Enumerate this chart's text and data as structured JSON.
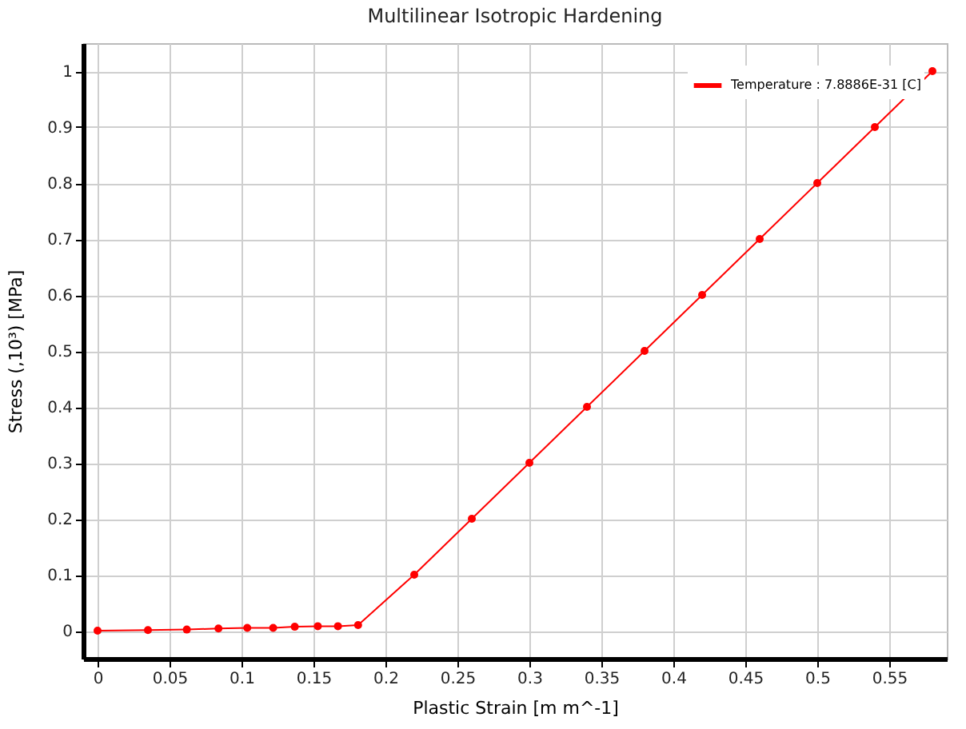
{
  "chart_data": {
    "type": "line",
    "title": "Multilinear Isotropic Hardening",
    "xlabel": "Plastic Strain  [m m^-1]",
    "ylabel": "Stress  (,10³)  [MPa]",
    "x": [
      0,
      0.035,
      0.062,
      0.084,
      0.104,
      0.122,
      0.137,
      0.153,
      0.167,
      0.181,
      0.22,
      0.26,
      0.3,
      0.34,
      0.38,
      0.42,
      0.46,
      0.5,
      0.54,
      0.58
    ],
    "series": [
      {
        "name": "Temperature : 7.8886E-31 [C]",
        "color": "#ff0000",
        "values": [
          0,
          0.001,
          0.002,
          0.004,
          0.005,
          0.005,
          0.007,
          0.008,
          0.008,
          0.01,
          0.1,
          0.2,
          0.3,
          0.4,
          0.5,
          0.6,
          0.7,
          0.8,
          0.9,
          1.0
        ]
      }
    ],
    "xlim": [
      -0.01,
      0.59
    ],
    "xticks": [
      0,
      0.05,
      0.1,
      0.15,
      0.2,
      0.25,
      0.3,
      0.35,
      0.4,
      0.45,
      0.5,
      0.55
    ],
    "ylim": [
      -0.05,
      1.05
    ],
    "yticks": [
      0,
      0.1,
      0.2,
      0.3,
      0.4,
      0.5,
      0.6,
      0.7,
      0.8,
      0.9,
      1
    ],
    "grid": true,
    "legend": "top right",
    "marker": "circle",
    "line_style": "solid"
  }
}
